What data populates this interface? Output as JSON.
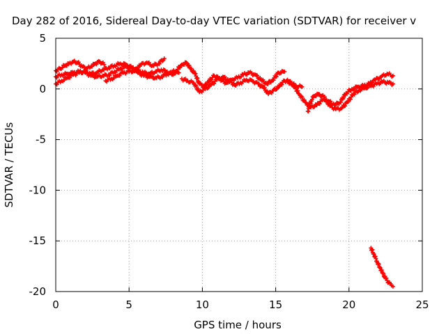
{
  "chart_data": {
    "type": "scatter",
    "title": "Day 282 of 2016, Sidereal Day-to-day VTEC variation (SDTVAR) for receiver v",
    "xlabel": "GPS time / hours",
    "ylabel": "SDTVAR / TECUs",
    "xlim": [
      0,
      25
    ],
    "ylim": [
      -20,
      5
    ],
    "x_ticks": [
      "0",
      "5",
      "10",
      "15",
      "20",
      "25"
    ],
    "y_ticks": [
      "5",
      "0",
      "-5",
      "-10",
      "-15",
      "-20"
    ],
    "grid": true,
    "legend": "none",
    "point_color": "#ff0000",
    "series": [
      {
        "values": [
          [
            0.0,
            1.8
          ],
          [
            0.3,
            2.0
          ],
          [
            0.6,
            2.3
          ],
          [
            0.9,
            2.5
          ],
          [
            1.2,
            2.7
          ],
          [
            1.5,
            2.6
          ],
          [
            1.8,
            2.2
          ],
          [
            2.1,
            2.0
          ],
          [
            2.4,
            2.2
          ],
          [
            2.7,
            2.5
          ],
          [
            3.0,
            2.7
          ],
          [
            3.3,
            2.4
          ]
        ]
      },
      {
        "values": [
          [
            0.0,
            0.5
          ],
          [
            0.4,
            0.8
          ],
          [
            0.8,
            1.1
          ],
          [
            1.2,
            1.4
          ],
          [
            1.6,
            1.6
          ],
          [
            2.0,
            1.7
          ],
          [
            2.4,
            1.5
          ],
          [
            2.8,
            1.6
          ],
          [
            3.2,
            1.9
          ],
          [
            3.6,
            2.1
          ],
          [
            4.0,
            2.3
          ],
          [
            4.4,
            2.5
          ],
          [
            4.8,
            2.4
          ],
          [
            5.2,
            2.1
          ],
          [
            5.6,
            1.8
          ],
          [
            6.0,
            1.6
          ],
          [
            6.4,
            1.5
          ],
          [
            6.8,
            1.7
          ],
          [
            7.2,
            1.9
          ],
          [
            7.6,
            1.7
          ],
          [
            8.0,
            1.4
          ]
        ]
      },
      {
        "values": [
          [
            0.0,
            1.2
          ],
          [
            0.4,
            1.4
          ],
          [
            0.8,
            1.5
          ],
          [
            1.2,
            1.6
          ],
          [
            1.6,
            1.7
          ],
          [
            2.0,
            1.6
          ],
          [
            2.4,
            1.3
          ],
          [
            2.8,
            1.2
          ],
          [
            3.2,
            1.3
          ],
          [
            3.6,
            1.4
          ],
          [
            4.0,
            1.7
          ],
          [
            4.4,
            2.0
          ],
          [
            4.8,
            2.2
          ],
          [
            5.2,
            2.0
          ],
          [
            5.6,
            1.6
          ],
          [
            6.0,
            1.3
          ],
          [
            6.4,
            1.2
          ],
          [
            6.8,
            1.1
          ],
          [
            7.2,
            1.2
          ],
          [
            7.6,
            1.5
          ],
          [
            8.0,
            1.6
          ],
          [
            8.4,
            1.6
          ]
        ]
      },
      {
        "values": [
          [
            3.4,
            0.8
          ],
          [
            3.8,
            1.0
          ],
          [
            4.2,
            1.3
          ],
          [
            4.6,
            1.6
          ],
          [
            5.0,
            1.7
          ],
          [
            5.4,
            1.8
          ],
          [
            5.8,
            2.4
          ],
          [
            6.2,
            2.6
          ],
          [
            6.6,
            2.3
          ],
          [
            7.0,
            2.5
          ],
          [
            7.4,
            3.0
          ]
        ]
      },
      {
        "values": [
          [
            7.8,
            1.6
          ],
          [
            8.2,
            1.8
          ],
          [
            8.6,
            2.4
          ],
          [
            8.9,
            2.6
          ],
          [
            9.2,
            2.0
          ],
          [
            9.5,
            1.5
          ],
          [
            9.8,
            0.5
          ],
          [
            10.1,
            0.2
          ],
          [
            10.4,
            0.7
          ],
          [
            10.8,
            1.3
          ],
          [
            11.2,
            1.0
          ],
          [
            11.6,
            0.6
          ],
          [
            12.0,
            0.9
          ],
          [
            12.4,
            1.1
          ],
          [
            12.8,
            1.4
          ],
          [
            13.2,
            1.6
          ],
          [
            13.6,
            1.4
          ],
          [
            14.0,
            0.9
          ],
          [
            14.4,
            0.5
          ],
          [
            14.8,
            0.9
          ],
          [
            15.2,
            1.6
          ],
          [
            15.6,
            1.7
          ]
        ]
      },
      {
        "values": [
          [
            8.6,
            1.0
          ],
          [
            9.0,
            0.8
          ],
          [
            9.4,
            0.6
          ],
          [
            9.8,
            -0.3
          ],
          [
            10.2,
            0.0
          ],
          [
            10.6,
            0.4
          ],
          [
            11.0,
            0.9
          ],
          [
            11.4,
            1.2
          ],
          [
            11.8,
            0.8
          ],
          [
            12.2,
            0.4
          ],
          [
            12.6,
            0.6
          ],
          [
            13.0,
            0.9
          ],
          [
            13.4,
            0.8
          ],
          [
            13.8,
            0.5
          ],
          [
            14.2,
            0.1
          ],
          [
            14.5,
            -0.5
          ],
          [
            14.8,
            -0.2
          ],
          [
            15.2,
            0.2
          ],
          [
            15.6,
            0.8
          ],
          [
            16.0,
            0.6
          ],
          [
            16.4,
            0.3
          ],
          [
            16.8,
            0.2
          ]
        ]
      },
      {
        "values": [
          [
            15.8,
            0.9
          ],
          [
            16.2,
            0.4
          ],
          [
            16.6,
            -0.5
          ],
          [
            17.0,
            -1.3
          ],
          [
            17.4,
            -1.8
          ],
          [
            17.8,
            -1.6
          ],
          [
            18.2,
            -1.1
          ],
          [
            18.6,
            -1.2
          ],
          [
            19.0,
            -1.6
          ],
          [
            19.4,
            -1.3
          ],
          [
            19.8,
            -0.4
          ],
          [
            20.2,
            0.0
          ],
          [
            20.6,
            0.2
          ],
          [
            21.0,
            0.3
          ],
          [
            21.4,
            0.5
          ],
          [
            21.8,
            0.9
          ],
          [
            22.2,
            1.2
          ],
          [
            22.6,
            1.5
          ],
          [
            23.0,
            1.3
          ]
        ]
      },
      {
        "values": [
          [
            17.2,
            -2.2
          ],
          [
            17.4,
            -1.2
          ],
          [
            17.6,
            -0.7
          ],
          [
            17.9,
            -0.5
          ],
          [
            18.3,
            -0.8
          ],
          [
            18.7,
            -1.7
          ],
          [
            19.1,
            -2.0
          ],
          [
            19.5,
            -1.9
          ],
          [
            19.9,
            -1.3
          ],
          [
            20.3,
            -0.5
          ],
          [
            20.7,
            -0.1
          ],
          [
            21.1,
            0.1
          ],
          [
            21.5,
            0.3
          ],
          [
            21.9,
            0.5
          ],
          [
            22.3,
            0.7
          ],
          [
            22.7,
            0.6
          ],
          [
            23.0,
            0.5
          ]
        ]
      },
      {
        "values": [
          [
            21.5,
            -15.7
          ],
          [
            21.7,
            -16.3
          ],
          [
            21.9,
            -17.0
          ],
          [
            22.1,
            -17.6
          ],
          [
            22.3,
            -18.2
          ],
          [
            22.5,
            -18.7
          ],
          [
            22.7,
            -19.1
          ],
          [
            22.9,
            -19.4
          ],
          [
            23.0,
            -19.5
          ]
        ]
      }
    ]
  }
}
